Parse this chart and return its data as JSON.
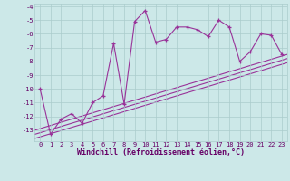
{
  "xlabel": "Windchill (Refroidissement éolien,°C)",
  "bg_color": "#cce8e8",
  "grid_color": "#aacccc",
  "line_color": "#993399",
  "x_values": [
    0,
    1,
    2,
    3,
    4,
    5,
    6,
    7,
    8,
    9,
    10,
    11,
    12,
    13,
    14,
    15,
    16,
    17,
    18,
    19,
    20,
    21,
    22,
    23
  ],
  "y_main": [
    -10.0,
    -13.3,
    -12.2,
    -11.8,
    -12.5,
    -11.0,
    -10.5,
    -6.7,
    -11.1,
    -5.1,
    -4.3,
    -6.6,
    -6.4,
    -5.5,
    -5.5,
    -5.7,
    -6.2,
    -5.0,
    -5.5,
    -8.0,
    -7.3,
    -6.0,
    -6.1,
    -7.5
  ],
  "reg_lines": [
    [
      [
        -0.5,
        -13.0
      ],
      [
        23.5,
        -7.5
      ]
    ],
    [
      [
        -0.5,
        -13.3
      ],
      [
        23.5,
        -7.8
      ]
    ],
    [
      [
        -0.5,
        -13.6
      ],
      [
        23.5,
        -8.1
      ]
    ]
  ],
  "ylim": [
    -13.8,
    -3.8
  ],
  "xlim": [
    -0.5,
    23.5
  ],
  "yticks": [
    -4,
    -5,
    -6,
    -7,
    -8,
    -9,
    -10,
    -11,
    -12,
    -13
  ],
  "xticks": [
    0,
    1,
    2,
    3,
    4,
    5,
    6,
    7,
    8,
    9,
    10,
    11,
    12,
    13,
    14,
    15,
    16,
    17,
    18,
    19,
    20,
    21,
    22,
    23
  ],
  "tick_fontsize": 5.0,
  "label_fontsize": 6.0
}
